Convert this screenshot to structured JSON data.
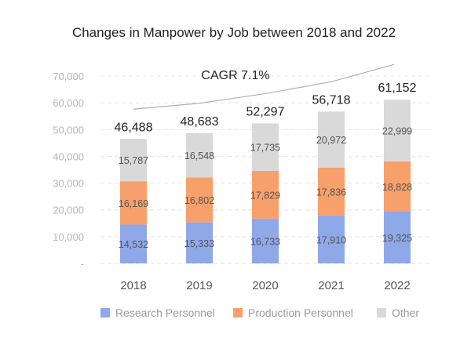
{
  "chart_data": {
    "type": "bar",
    "stacked": true,
    "title": "Changes in Manpower by Job between 2018 and 2022",
    "categories": [
      "2018",
      "2019",
      "2020",
      "2021",
      "2022"
    ],
    "series": [
      {
        "name": "Research Personnel",
        "color": "#8fa8e8",
        "values": [
          14532,
          15333,
          16733,
          17910,
          19325
        ],
        "labels": [
          "14,532",
          "15,333",
          "16,733",
          "17,910",
          "19,325"
        ]
      },
      {
        "name": "Production Personnel",
        "color": "#f7a06b",
        "values": [
          16169,
          16802,
          17829,
          17836,
          18828
        ],
        "labels": [
          "16,169",
          "16,802",
          "17,829",
          "17,836",
          "18,828"
        ]
      },
      {
        "name": "Other",
        "color": "#d9d9d9",
        "values": [
          15787,
          16548,
          17735,
          20972,
          22999
        ],
        "labels": [
          "15,787",
          "16,548",
          "17,735",
          "20,972",
          "22,999"
        ]
      }
    ],
    "totals": [
      46488,
      48683,
      52297,
      56718,
      61152
    ],
    "total_labels": [
      "46,488",
      "48,683",
      "52,297",
      "56,718",
      "61,152"
    ],
    "ylim": [
      0,
      70000
    ],
    "yticks": [
      0,
      10000,
      20000,
      30000,
      40000,
      50000,
      60000,
      70000
    ],
    "ytick_labels": [
      "-",
      "10,000",
      "20,000",
      "30,000",
      "40,000",
      "50,000",
      "60,000",
      "70,000"
    ],
    "grid": true,
    "legend_position": "bottom",
    "annotation": {
      "text": "CAGR 7.1%",
      "trend_line_color": "#b0b0b0"
    }
  }
}
